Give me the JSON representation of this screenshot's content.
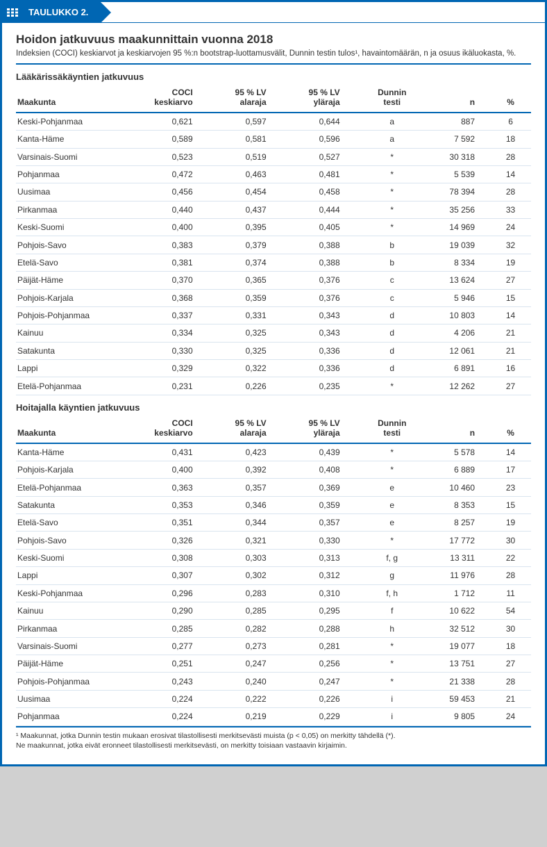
{
  "header": {
    "label": "TAULUKKO 2."
  },
  "title": "Hoidon jatkuvuus maakunnittain vuonna 2018",
  "subtitle": "Indeksien (COCI) keskiarvot ja keskiarvojen 95 %:n bootstrap-luottamusvälit, Dunnin testin tulos¹, havaintomäärän, n ja osuus ikäluokasta, %.",
  "columns": {
    "region": "Maakunta",
    "coci_l1": "COCI",
    "coci_l2": "keskiarvo",
    "lo_l1": "95 % LV",
    "lo_l2": "alaraja",
    "hi_l1": "95 % LV",
    "hi_l2": "yläraja",
    "dunn_l1": "Dunnin",
    "dunn_l2": "testi",
    "n": "n",
    "pct": "%"
  },
  "section1": {
    "title": "Lääkärissäkäyntien jatkuvuus",
    "rows": [
      {
        "region": "Keski-Pohjanmaa",
        "coci": "0,621",
        "lo": "0,597",
        "hi": "0,644",
        "dunn": "a",
        "n": "887",
        "pct": "6"
      },
      {
        "region": "Kanta-Häme",
        "coci": "0,589",
        "lo": "0,581",
        "hi": "0,596",
        "dunn": "a",
        "n": "7 592",
        "pct": "18"
      },
      {
        "region": "Varsinais-Suomi",
        "coci": "0,523",
        "lo": "0,519",
        "hi": "0,527",
        "dunn": "*",
        "n": "30 318",
        "pct": "28"
      },
      {
        "region": "Pohjanmaa",
        "coci": "0,472",
        "lo": "0,463",
        "hi": "0,481",
        "dunn": "*",
        "n": "5 539",
        "pct": "14"
      },
      {
        "region": "Uusimaa",
        "coci": "0,456",
        "lo": "0,454",
        "hi": "0,458",
        "dunn": "*",
        "n": "78 394",
        "pct": "28"
      },
      {
        "region": "Pirkanmaa",
        "coci": "0,440",
        "lo": "0,437",
        "hi": "0,444",
        "dunn": "*",
        "n": "35 256",
        "pct": "33"
      },
      {
        "region": "Keski-Suomi",
        "coci": "0,400",
        "lo": "0,395",
        "hi": "0,405",
        "dunn": "*",
        "n": "14 969",
        "pct": "24"
      },
      {
        "region": "Pohjois-Savo",
        "coci": "0,383",
        "lo": "0,379",
        "hi": "0,388",
        "dunn": "b",
        "n": "19 039",
        "pct": "32"
      },
      {
        "region": "Etelä-Savo",
        "coci": "0,381",
        "lo": "0,374",
        "hi": "0,388",
        "dunn": "b",
        "n": "8 334",
        "pct": "19"
      },
      {
        "region": "Päijät-Häme",
        "coci": "0,370",
        "lo": "0,365",
        "hi": "0,376",
        "dunn": "c",
        "n": "13 624",
        "pct": "27"
      },
      {
        "region": "Pohjois-Karjala",
        "coci": "0,368",
        "lo": "0,359",
        "hi": "0,376",
        "dunn": "c",
        "n": "5 946",
        "pct": "15"
      },
      {
        "region": "Pohjois-Pohjanmaa",
        "coci": "0,337",
        "lo": "0,331",
        "hi": "0,343",
        "dunn": "d",
        "n": "10 803",
        "pct": "14"
      },
      {
        "region": "Kainuu",
        "coci": "0,334",
        "lo": "0,325",
        "hi": "0,343",
        "dunn": "d",
        "n": "4 206",
        "pct": "21"
      },
      {
        "region": "Satakunta",
        "coci": "0,330",
        "lo": "0,325",
        "hi": "0,336",
        "dunn": "d",
        "n": "12 061",
        "pct": "21"
      },
      {
        "region": "Lappi",
        "coci": "0,329",
        "lo": "0,322",
        "hi": "0,336",
        "dunn": "d",
        "n": "6 891",
        "pct": "16"
      },
      {
        "region": "Etelä-Pohjanmaa",
        "coci": "0,231",
        "lo": "0,226",
        "hi": "0,235",
        "dunn": "*",
        "n": "12 262",
        "pct": "27"
      }
    ]
  },
  "section2": {
    "title": "Hoitajalla käyntien jatkuvuus",
    "rows": [
      {
        "region": "Kanta-Häme",
        "coci": "0,431",
        "lo": "0,423",
        "hi": "0,439",
        "dunn": "*",
        "n": "5 578",
        "pct": "14"
      },
      {
        "region": "Pohjois-Karjala",
        "coci": "0,400",
        "lo": "0,392",
        "hi": "0,408",
        "dunn": "*",
        "n": "6 889",
        "pct": "17"
      },
      {
        "region": "Etelä-Pohjanmaa",
        "coci": "0,363",
        "lo": "0,357",
        "hi": "0,369",
        "dunn": "e",
        "n": "10 460",
        "pct": "23"
      },
      {
        "region": "Satakunta",
        "coci": "0,353",
        "lo": "0,346",
        "hi": "0,359",
        "dunn": "e",
        "n": "8 353",
        "pct": "15"
      },
      {
        "region": "Etelä-Savo",
        "coci": "0,351",
        "lo": "0,344",
        "hi": "0,357",
        "dunn": "e",
        "n": "8 257",
        "pct": "19"
      },
      {
        "region": "Pohjois-Savo",
        "coci": "0,326",
        "lo": "0,321",
        "hi": "0,330",
        "dunn": "*",
        "n": "17 772",
        "pct": "30"
      },
      {
        "region": "Keski-Suomi",
        "coci": "0,308",
        "lo": "0,303",
        "hi": "0,313",
        "dunn": "f, g",
        "n": "13 311",
        "pct": "22"
      },
      {
        "region": "Lappi",
        "coci": "0,307",
        "lo": "0,302",
        "hi": "0,312",
        "dunn": "g",
        "n": "11 976",
        "pct": "28"
      },
      {
        "region": "Keski-Pohjanmaa",
        "coci": "0,296",
        "lo": "0,283",
        "hi": "0,310",
        "dunn": "f, h",
        "n": "1 712",
        "pct": "11"
      },
      {
        "region": "Kainuu",
        "coci": "0,290",
        "lo": "0,285",
        "hi": "0,295",
        "dunn": "f",
        "n": "10 622",
        "pct": "54"
      },
      {
        "region": "Pirkanmaa",
        "coci": "0,285",
        "lo": "0,282",
        "hi": "0,288",
        "dunn": "h",
        "n": "32 512",
        "pct": "30"
      },
      {
        "region": "Varsinais-Suomi",
        "coci": "0,277",
        "lo": "0,273",
        "hi": "0,281",
        "dunn": "*",
        "n": "19 077",
        "pct": "18"
      },
      {
        "region": "Päijät-Häme",
        "coci": "0,251",
        "lo": "0,247",
        "hi": "0,256",
        "dunn": "*",
        "n": "13 751",
        "pct": "27"
      },
      {
        "region": "Pohjois-Pohjanmaa",
        "coci": "0,243",
        "lo": "0,240",
        "hi": "0,247",
        "dunn": "*",
        "n": "21 338",
        "pct": "28"
      },
      {
        "region": "Uusimaa",
        "coci": "0,224",
        "lo": "0,222",
        "hi": "0,226",
        "dunn": "i",
        "n": "59 453",
        "pct": "21"
      },
      {
        "region": "Pohjanmaa",
        "coci": "0,224",
        "lo": "0,219",
        "hi": "0,229",
        "dunn": "i",
        "n": "9 805",
        "pct": "24"
      }
    ]
  },
  "footnote_l1": "¹ Maakunnat, jotka Dunnin testin mukaan erosivat tilastollisesti merkitsevästi muista (p < 0,05) on merkitty tähdellä (*).",
  "footnote_l2": "Ne maakunnat, jotka eivät eronneet tilastollisesti merkitsevästi, on merkitty toisiaan vastaavin kirjaimin."
}
